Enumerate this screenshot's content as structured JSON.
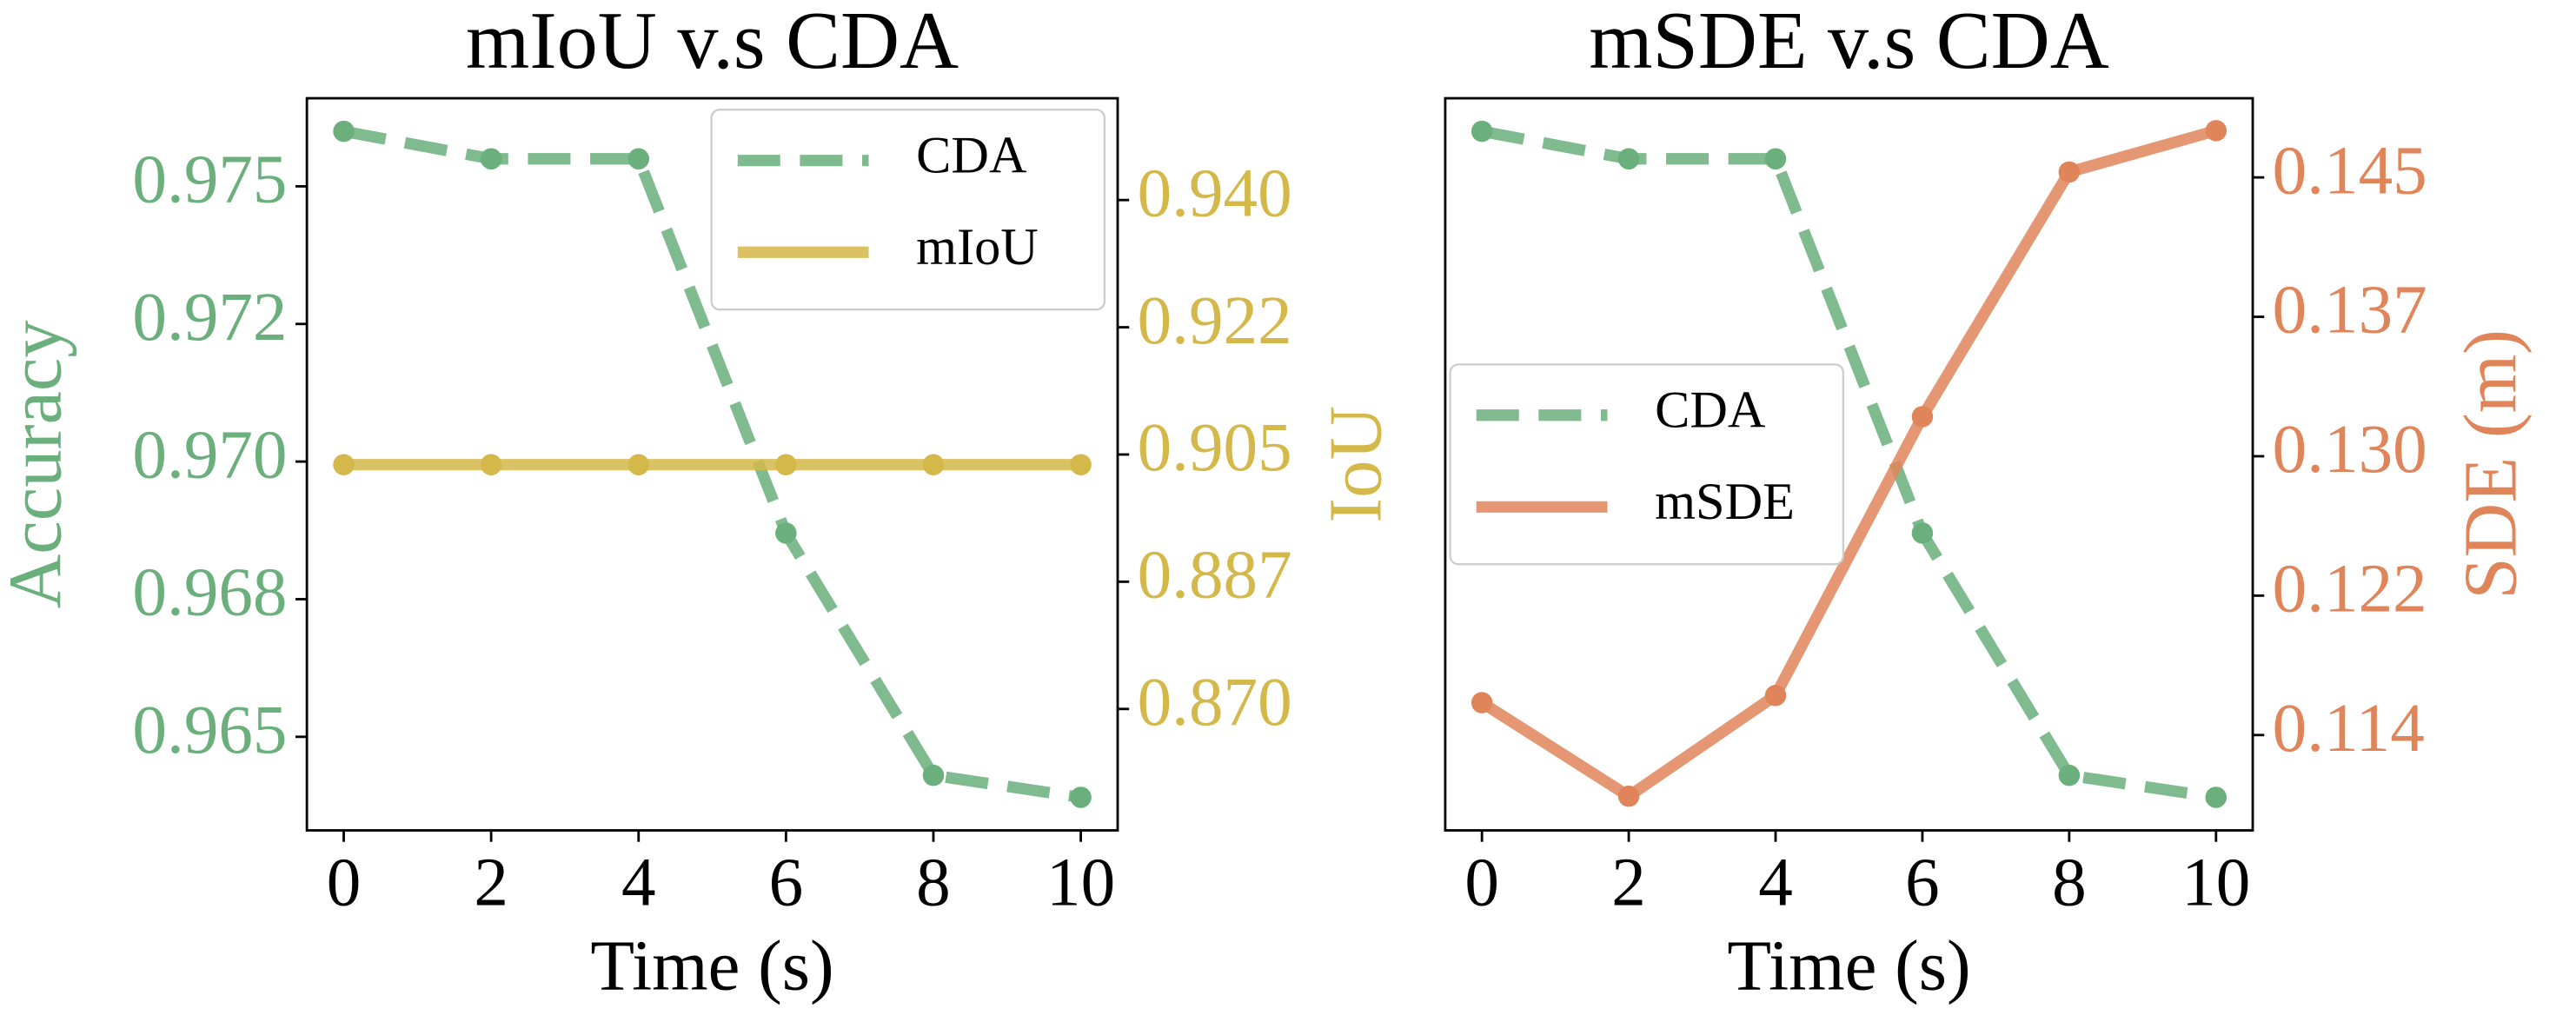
{
  "chart_data": [
    {
      "type": "line",
      "title": "mIoU v.s CDA",
      "xlabel": "Time (s)",
      "ylabel": "Accuracy",
      "y2label": "IoU",
      "x": [
        0,
        2,
        4,
        6,
        8,
        10
      ],
      "xlim": [
        -0.5,
        10.5
      ],
      "xticks": [
        0,
        2,
        4,
        6,
        8,
        10
      ],
      "ylim": [
        0.9633,
        0.9766
      ],
      "yticks": [
        {
          "value": 0.965,
          "label": "0.965"
        },
        {
          "value": 0.9675,
          "label": "0.968"
        },
        {
          "value": 0.97,
          "label": "0.970"
        },
        {
          "value": 0.9725,
          "label": "0.972"
        },
        {
          "value": 0.975,
          "label": "0.975"
        }
      ],
      "ylabel_color": "#6aaf7c",
      "y2lim": [
        0.8533,
        0.954
      ],
      "y2ticks": [
        {
          "value": 0.87,
          "label": "0.870"
        },
        {
          "value": 0.8875,
          "label": "0.887"
        },
        {
          "value": 0.905,
          "label": "0.905"
        },
        {
          "value": 0.9225,
          "label": "0.922"
        },
        {
          "value": 0.94,
          "label": "0.940"
        }
      ],
      "y2label_color": "#d4b84a",
      "legend": "upper right",
      "series": [
        {
          "name": "CDA",
          "color": "#6aaf7c",
          "linestyle": "dashed",
          "axis": "y",
          "values": [
            0.976,
            0.9755,
            0.9755,
            0.9687,
            0.9643,
            0.9639
          ]
        },
        {
          "name": "mIoU",
          "color": "#d4b84a",
          "linestyle": "solid",
          "axis": "y2",
          "values": [
            0.9036,
            0.9036,
            0.9036,
            0.9036,
            0.9036,
            0.9036
          ]
        }
      ]
    },
    {
      "type": "line",
      "title": "mSDE v.s CDA",
      "xlabel": "Time (s)",
      "y2label": "SDE (m)",
      "x": [
        0,
        2,
        4,
        6,
        8,
        10
      ],
      "xlim": [
        -0.5,
        10.5
      ],
      "xticks": [
        0,
        2,
        4,
        6,
        8,
        10
      ],
      "ylim": [
        0.9633,
        0.9766
      ],
      "y2lim": [
        0.1087,
        0.1494
      ],
      "y2ticks": [
        {
          "value": 0.114,
          "label": "0.114"
        },
        {
          "value": 0.12175,
          "label": "0.122"
        },
        {
          "value": 0.1295,
          "label": "0.130"
        },
        {
          "value": 0.13725,
          "label": "0.137"
        },
        {
          "value": 0.145,
          "label": "0.145"
        }
      ],
      "y2label_color": "#e0855a",
      "legend": "center left",
      "series": [
        {
          "name": "CDA",
          "color": "#6aaf7c",
          "linestyle": "dashed",
          "axis": "y",
          "values": [
            0.976,
            0.9755,
            0.9755,
            0.9687,
            0.9643,
            0.9639
          ]
        },
        {
          "name": "mSDE",
          "color": "#e0855a",
          "linestyle": "solid",
          "axis": "y2",
          "values": [
            0.1158,
            0.1106,
            0.1162,
            0.1317,
            0.1453,
            0.1476
          ]
        }
      ]
    }
  ]
}
